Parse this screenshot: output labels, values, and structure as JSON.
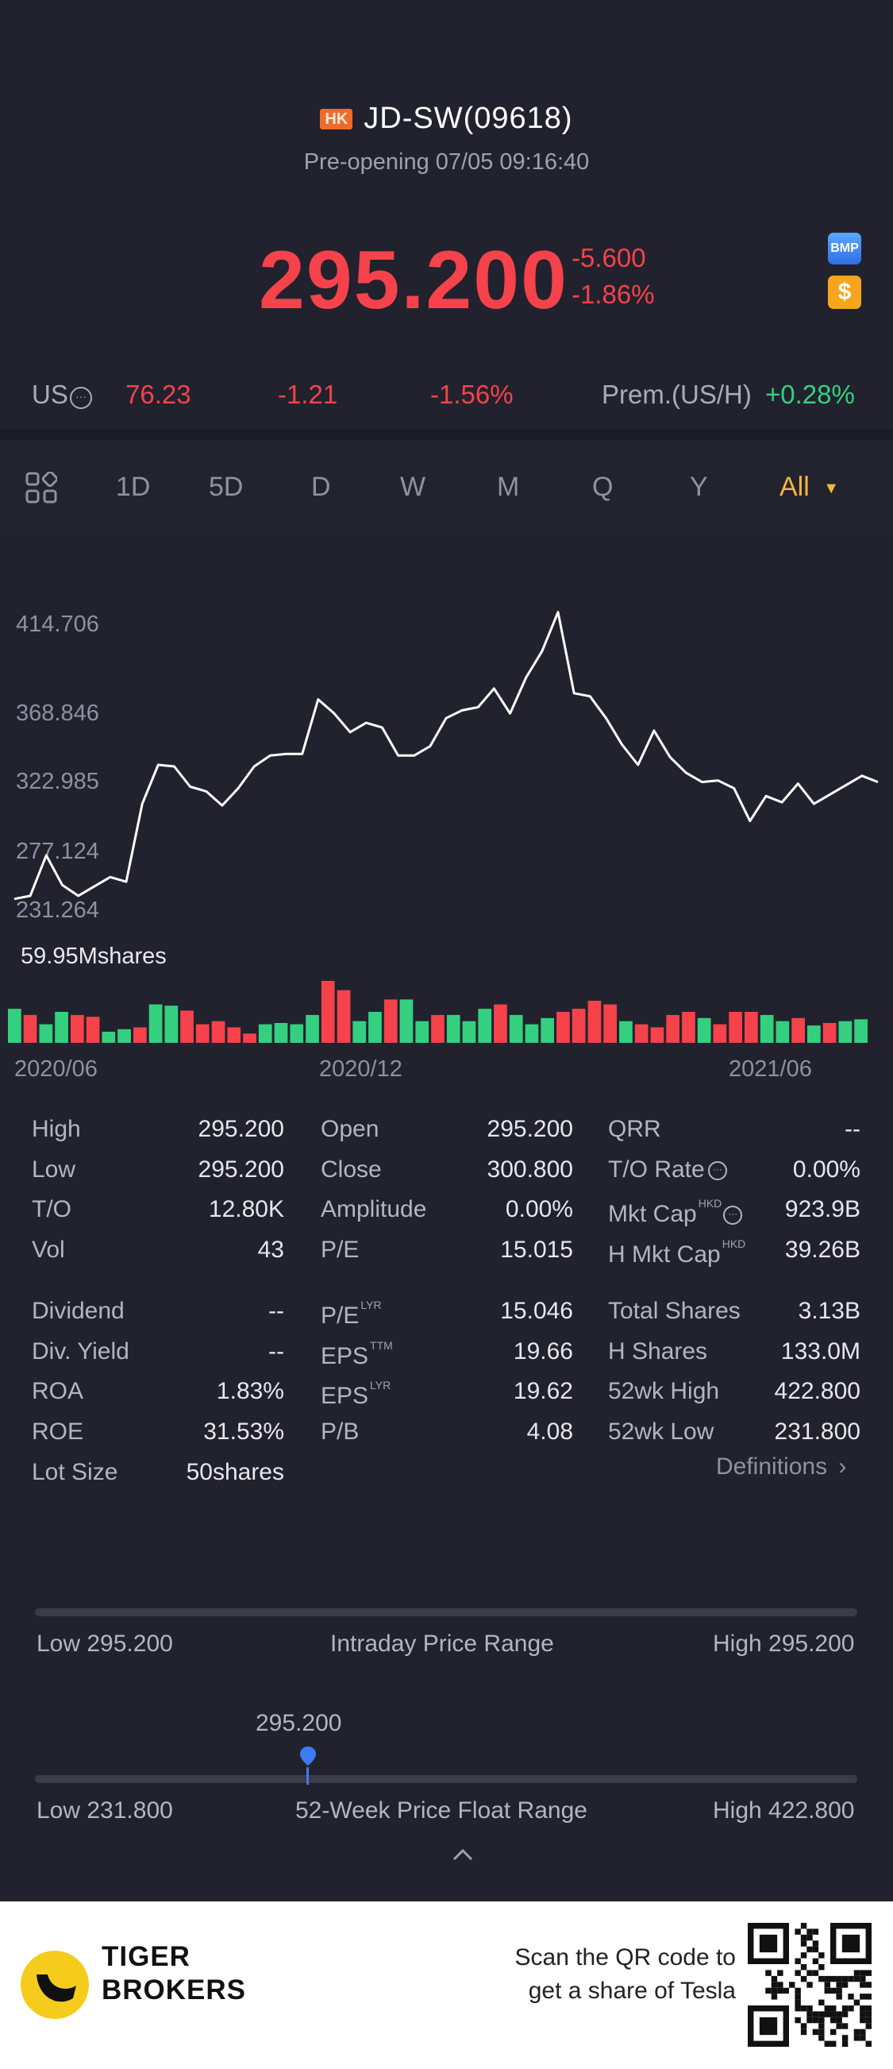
{
  "header": {
    "market_badge": "HK",
    "title": "JD-SW(09618)",
    "status": "Pre-opening 07/05 09:16:40"
  },
  "quote": {
    "price": "295.200",
    "change": "-5.600",
    "change_pct": "-1.86%",
    "icons": [
      "bmp-icon",
      "dollar-icon"
    ]
  },
  "us_row": {
    "label": "US",
    "price": "76.23",
    "change": "-1.21",
    "change_pct": "-1.56%",
    "premium_label": "Prem.(US/H)",
    "premium_value": "+0.28%"
  },
  "tabs": [
    "1D",
    "5D",
    "D",
    "W",
    "M",
    "Q",
    "Y",
    "All"
  ],
  "active_tab": "All",
  "chart_data": {
    "type": "line",
    "y_ticks": [
      "414.706",
      "368.846",
      "322.985",
      "277.124",
      "231.264"
    ],
    "x_ticks": [
      "2020/06",
      "2020/12",
      "2021/06"
    ],
    "ylim": [
      231.264,
      414.706
    ],
    "series": [
      {
        "values": [
          239,
          241,
          267,
          248,
          241,
          247,
          253,
          250,
          300,
          325,
          324,
          311,
          308,
          299,
          310,
          324,
          331,
          332,
          332,
          367,
          358,
          346,
          352,
          349,
          331,
          331,
          337,
          355,
          360,
          362,
          374,
          358,
          381,
          398,
          423,
          371,
          369,
          355,
          338,
          325,
          347,
          330,
          320,
          314,
          315,
          310,
          289,
          305,
          301,
          313,
          300,
          306,
          312,
          318,
          314
        ]
      }
    ],
    "volume_label": "59.95Mshares",
    "volume": [
      {
        "v": 0.55,
        "c": "green"
      },
      {
        "v": 0.45,
        "c": "red"
      },
      {
        "v": 0.3,
        "c": "green"
      },
      {
        "v": 0.5,
        "c": "green"
      },
      {
        "v": 0.45,
        "c": "red"
      },
      {
        "v": 0.42,
        "c": "red"
      },
      {
        "v": 0.18,
        "c": "green"
      },
      {
        "v": 0.22,
        "c": "green"
      },
      {
        "v": 0.25,
        "c": "red"
      },
      {
        "v": 0.62,
        "c": "green"
      },
      {
        "v": 0.6,
        "c": "green"
      },
      {
        "v": 0.52,
        "c": "red"
      },
      {
        "v": 0.3,
        "c": "red"
      },
      {
        "v": 0.35,
        "c": "red"
      },
      {
        "v": 0.25,
        "c": "red"
      },
      {
        "v": 0.15,
        "c": "red"
      },
      {
        "v": 0.3,
        "c": "green"
      },
      {
        "v": 0.32,
        "c": "green"
      },
      {
        "v": 0.3,
        "c": "green"
      },
      {
        "v": 0.45,
        "c": "green"
      },
      {
        "v": 1.0,
        "c": "red"
      },
      {
        "v": 0.85,
        "c": "red"
      },
      {
        "v": 0.35,
        "c": "green"
      },
      {
        "v": 0.5,
        "c": "green"
      },
      {
        "v": 0.7,
        "c": "red"
      },
      {
        "v": 0.7,
        "c": "green"
      },
      {
        "v": 0.35,
        "c": "green"
      },
      {
        "v": 0.45,
        "c": "red"
      },
      {
        "v": 0.45,
        "c": "green"
      },
      {
        "v": 0.35,
        "c": "green"
      },
      {
        "v": 0.55,
        "c": "green"
      },
      {
        "v": 0.62,
        "c": "red"
      },
      {
        "v": 0.45,
        "c": "green"
      },
      {
        "v": 0.3,
        "c": "green"
      },
      {
        "v": 0.4,
        "c": "green"
      },
      {
        "v": 0.5,
        "c": "red"
      },
      {
        "v": 0.55,
        "c": "red"
      },
      {
        "v": 0.68,
        "c": "red"
      },
      {
        "v": 0.62,
        "c": "red"
      },
      {
        "v": 0.35,
        "c": "green"
      },
      {
        "v": 0.3,
        "c": "red"
      },
      {
        "v": 0.25,
        "c": "red"
      },
      {
        "v": 0.45,
        "c": "red"
      },
      {
        "v": 0.5,
        "c": "red"
      },
      {
        "v": 0.4,
        "c": "green"
      },
      {
        "v": 0.3,
        "c": "red"
      },
      {
        "v": 0.5,
        "c": "red"
      },
      {
        "v": 0.5,
        "c": "red"
      },
      {
        "v": 0.45,
        "c": "green"
      },
      {
        "v": 0.35,
        "c": "green"
      },
      {
        "v": 0.4,
        "c": "red"
      },
      {
        "v": 0.28,
        "c": "green"
      },
      {
        "v": 0.32,
        "c": "red"
      },
      {
        "v": 0.35,
        "c": "green"
      },
      {
        "v": 0.38,
        "c": "green"
      }
    ]
  },
  "stats": {
    "col1": [
      {
        "label": "High",
        "value": "295.200"
      },
      {
        "label": "Low",
        "value": "295.200"
      },
      {
        "label": "T/O",
        "value": "12.80K"
      },
      {
        "label": "Vol",
        "value": "43"
      },
      {
        "label": "Dividend",
        "value": "--"
      },
      {
        "label": "Div. Yield",
        "value": "--"
      },
      {
        "label": "ROA",
        "value": "1.83%"
      },
      {
        "label": "ROE",
        "value": "31.53%"
      },
      {
        "label": "Lot Size",
        "value": "50shares"
      }
    ],
    "col2": [
      {
        "label": "Open",
        "value": "295.200"
      },
      {
        "label": "Close",
        "value": "300.800"
      },
      {
        "label": "Amplitude",
        "value": "0.00%"
      },
      {
        "label": "P/E",
        "value": "15.015"
      },
      {
        "label": "P/E",
        "sup": "LYR",
        "value": "15.046"
      },
      {
        "label": "EPS",
        "sup": "TTM",
        "value": "19.66"
      },
      {
        "label": "EPS",
        "sup": "LYR",
        "value": "19.62"
      },
      {
        "label": "P/B",
        "value": "4.08"
      }
    ],
    "col3": [
      {
        "label": "QRR",
        "value": "--"
      },
      {
        "label": "T/O Rate",
        "value": "0.00%"
      },
      {
        "label": "Mkt Cap",
        "sup": "HKD",
        "value": "923.9B"
      },
      {
        "label": "H Mkt Cap",
        "sup": "HKD",
        "value": "39.26B"
      },
      {
        "label": "Total Shares",
        "value": "3.13B"
      },
      {
        "label": "H Shares",
        "value": "133.0M"
      },
      {
        "label": "52wk High",
        "value": "422.800"
      },
      {
        "label": "52wk Low",
        "value": "231.800"
      }
    ],
    "definitions": "Definitions"
  },
  "intraday": {
    "low": "Low 295.200",
    "title": "Intraday Price Range",
    "high": "High 295.200"
  },
  "week52": {
    "current": "295.200",
    "current_position": 0.332,
    "low": "Low 231.800",
    "title": "52-Week Price Float Range",
    "high": "High 422.800"
  },
  "footer": {
    "brand_line1": "TIGER",
    "brand_line2": "BROKERS",
    "scan_line1": "Scan the QR code to",
    "scan_line2": "get a share of Tesla"
  },
  "colors": {
    "red": "#f5424b",
    "green": "#34d07f",
    "accent": "#f5b63b",
    "background": "#21222d"
  }
}
